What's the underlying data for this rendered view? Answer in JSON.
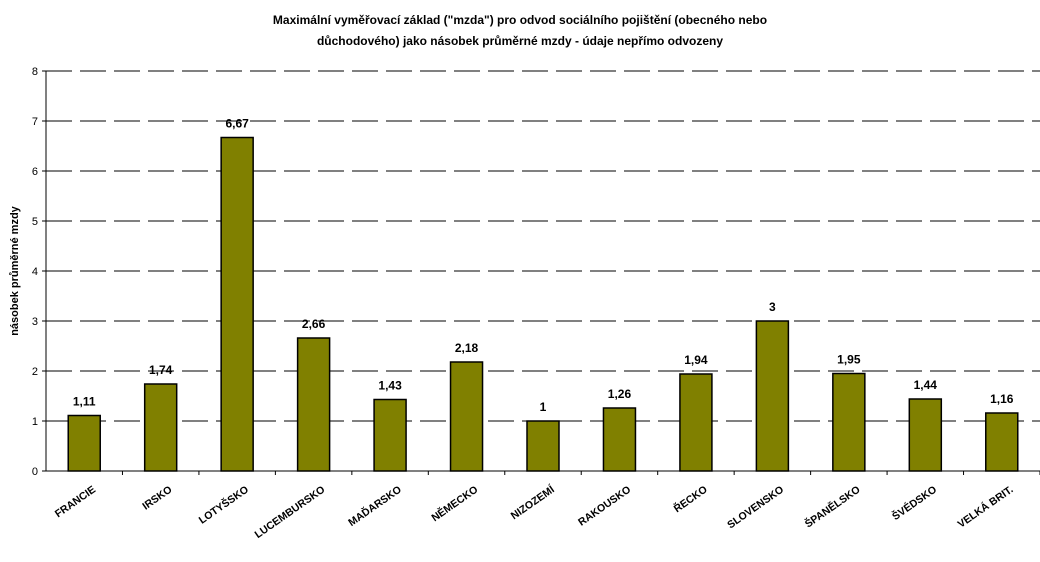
{
  "chart_data": {
    "type": "bar",
    "title": "Maximální vyměřovací základ (\"mzda\") pro odvod sociálního pojištění (obecného nebo důchodového) jako násobek průměrné mzdy - údaje nepřímo odvozeny",
    "title_lines": [
      "Maximální vyměřovací základ (\"mzda\") pro odvod sociálního pojištění (obecného nebo",
      "důchodového) jako násobek průměrné mzdy - údaje nepřímo odvozeny"
    ],
    "ylabel": "násobek průměrné mzdy",
    "xlabel": "",
    "ylim": [
      0,
      8
    ],
    "yticks": [
      "0",
      "1",
      "2",
      "3",
      "4",
      "5",
      "6",
      "7",
      "8"
    ],
    "grid": true,
    "legend": "none",
    "categories": [
      "FRANCIE",
      "IRSKO",
      "LOTYŠSKO",
      "LUCEMBURSKO",
      "MAĎARSKO",
      "NĚMECKO",
      "NIZOZEMÍ",
      "RAKOUSKO",
      "ŘECKO",
      "SLOVENSKO",
      "ŠPANĚLSKO",
      "ŠVÉDSKO",
      "VELKÁ BRIT."
    ],
    "values": [
      1.11,
      1.74,
      6.67,
      2.66,
      1.43,
      2.18,
      1,
      1.26,
      1.94,
      3,
      1.95,
      1.44,
      1.16
    ],
    "data_labels": [
      "1,11",
      "1,74",
      "6,67",
      "2,66",
      "1,43",
      "2,18",
      "1",
      "1,26",
      "1,94",
      "3",
      "1,95",
      "1,44",
      "1,16"
    ],
    "colors": {
      "bar": "#808000",
      "bar_stroke": "#000000",
      "grid": "#000000"
    }
  }
}
